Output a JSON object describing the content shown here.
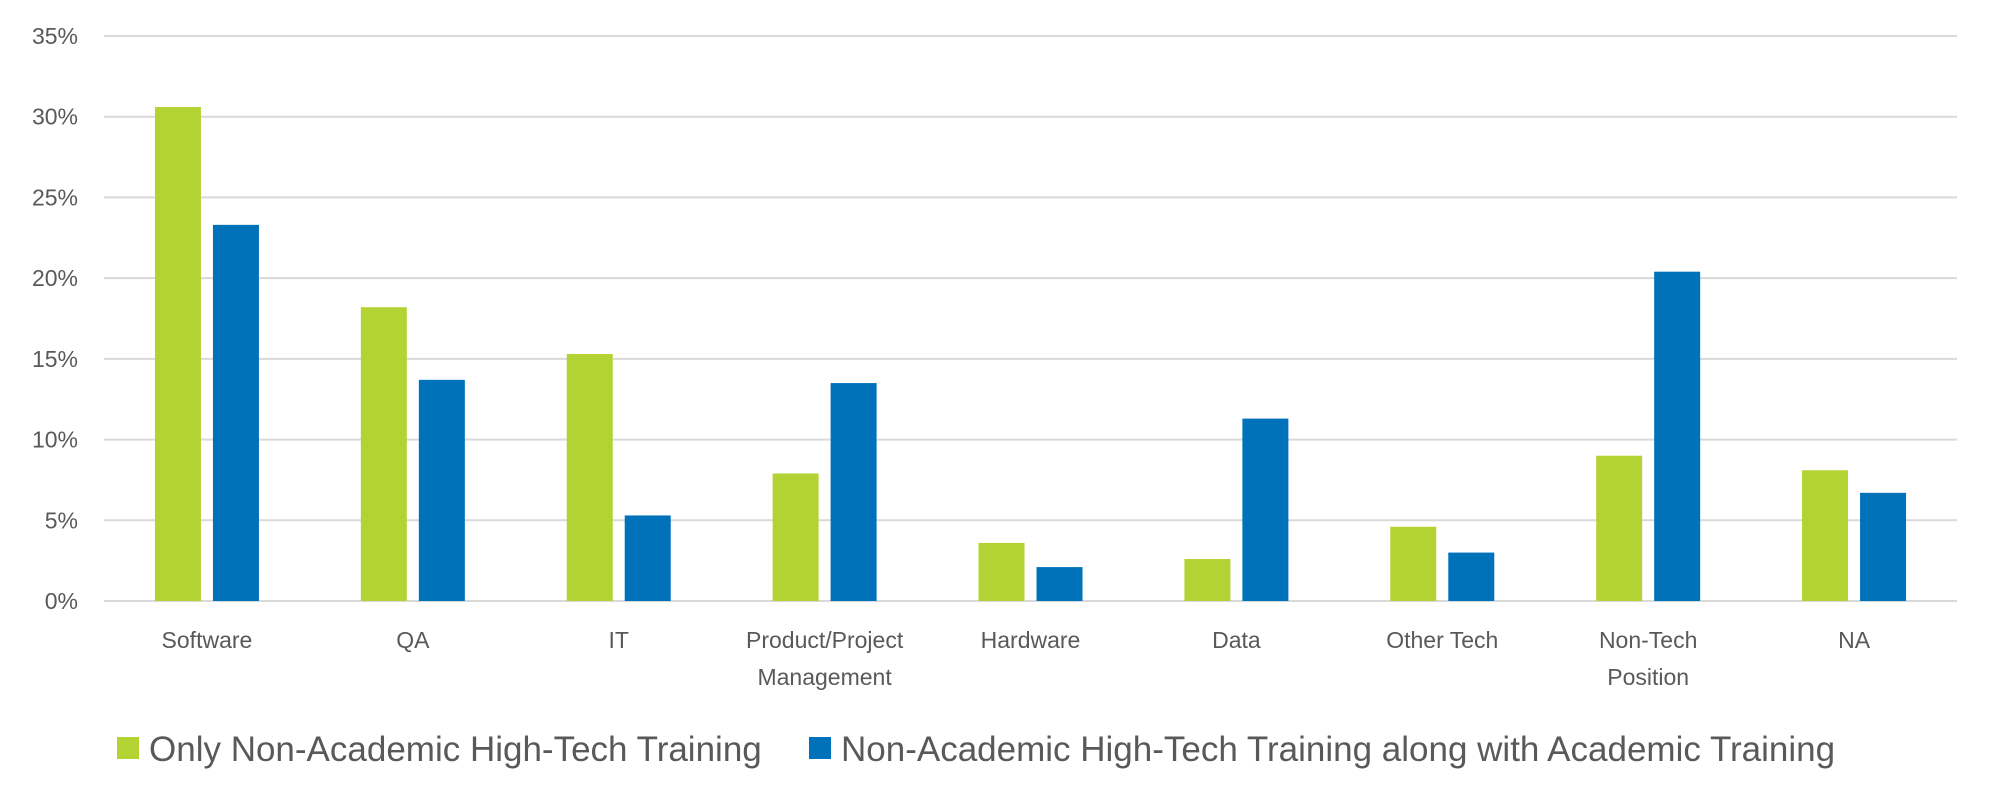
{
  "chart_data": {
    "type": "bar",
    "title": "",
    "xlabel": "",
    "ylabel": "",
    "ylim": [
      0,
      35
    ],
    "yticks": [
      "0%",
      "5%",
      "10%",
      "15%",
      "20%",
      "25%",
      "30%",
      "35%"
    ],
    "grid": true,
    "legend_position": "bottom",
    "categories": [
      [
        "Software"
      ],
      [
        "QA"
      ],
      [
        "IT"
      ],
      [
        "Product/Project",
        "Management"
      ],
      [
        "Hardware"
      ],
      [
        "Data"
      ],
      [
        "Other Tech"
      ],
      [
        "Non-Tech",
        "Position"
      ],
      [
        "NA"
      ]
    ],
    "series": [
      {
        "name": "Only Non-Academic High-Tech Training",
        "color": "#B3D334",
        "values": [
          30.6,
          18.2,
          15.3,
          7.9,
          3.6,
          2.6,
          4.6,
          9.0,
          8.1
        ]
      },
      {
        "name": "Non-Academic High-Tech Training along with Academic Training",
        "color": "#0072BA",
        "values": [
          23.3,
          13.7,
          5.3,
          13.5,
          2.1,
          11.3,
          3.0,
          20.4,
          6.7
        ]
      }
    ]
  }
}
